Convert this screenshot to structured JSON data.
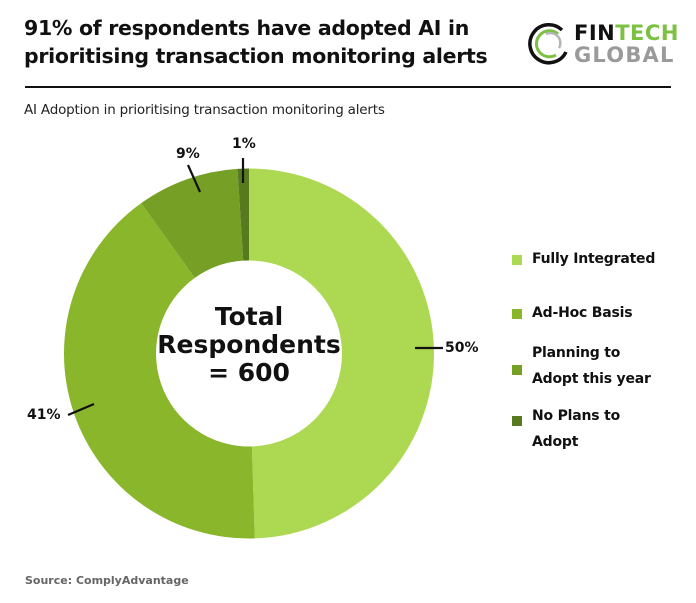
{
  "header": {
    "title": "91% of respondents have adopted AI in prioritising transaction monitoring alerts",
    "subtitle": "AI Adoption in prioritising transaction monitoring alerts"
  },
  "logo": {
    "word1_part1": "FIN",
    "word1_part2": "TECH",
    "word2": "GLOBAL",
    "colors": {
      "fin": "#111111",
      "tech": "#7cc142",
      "global": "#9a9a9a"
    }
  },
  "center_label": {
    "line1": "Total",
    "line2": "Respondents",
    "line3": "= 600"
  },
  "footer": {
    "source": "Source: ComplyAdvantage"
  },
  "chart_data": {
    "type": "pie",
    "variant": "donut",
    "title": "AI Adoption in prioritising transaction monitoring alerts",
    "total_respondents": 600,
    "categories": [
      "Fully Integrated",
      "Ad-Hoc Basis",
      "Planning to Adopt this year",
      "No Plans to Adopt"
    ],
    "values": [
      50,
      41,
      9,
      1
    ],
    "value_labels": [
      "50%",
      "41%",
      "9%",
      "1%"
    ],
    "colors": [
      "#acd951",
      "#89b62a",
      "#75a025",
      "#587a1f"
    ],
    "start_angle_deg": 0,
    "direction": "clockwise",
    "legend_position": "right",
    "legend": [
      {
        "label_line1": "Fully Integrated",
        "label_line2": "",
        "color": "#acd951"
      },
      {
        "label_line1": "Ad-Hoc Basis",
        "label_line2": "",
        "color": "#89b62a"
      },
      {
        "label_line1": "Planning to",
        "label_line2": "Adopt this year",
        "color": "#75a025"
      },
      {
        "label_line1": "No Plans to",
        "label_line2": "Adopt",
        "color": "#587a1f"
      }
    ],
    "annotation": "Total Respondents = 600"
  }
}
